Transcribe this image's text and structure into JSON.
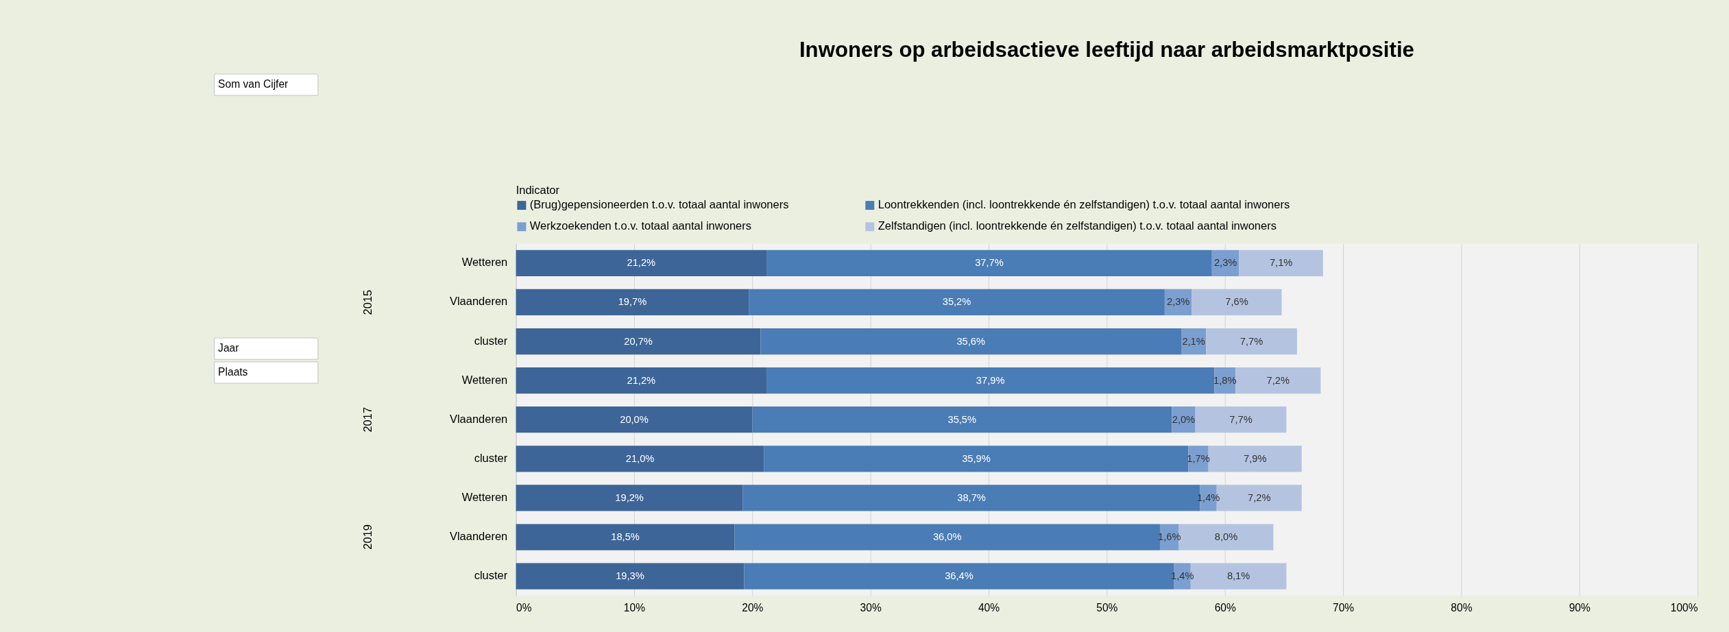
{
  "chart_data": {
    "type": "bar",
    "orientation": "horizontal",
    "stacked": true,
    "title": "Inwoners op arbeidsactieve leeftijd naar arbeidsmarktpositie",
    "legend_title": "Indicator",
    "legend": "top",
    "categories": [
      "Wetteren",
      "Vlaanderen",
      "cluster",
      "Wetteren",
      "Vlaanderen",
      "cluster",
      "Wetteren",
      "Vlaanderen",
      "cluster"
    ],
    "series": [
      {
        "name": "(Brug)gepensioneerden t.o.v. totaal aantal inwoners",
        "color": "#3d6597",
        "values": [
          21.2,
          19.7,
          20.7,
          21.2,
          20.0,
          21.0,
          19.2,
          18.5,
          19.3
        ],
        "value_labels": [
          "21,2%",
          "19,7%",
          "20,7%",
          "21,2%",
          "20,0%",
          "21,0%",
          "19,2%",
          "18,5%",
          "19,3%"
        ]
      },
      {
        "name": "Loontrekkenden (incl. loontrekkende én zelfstandigen) t.o.v. totaal aantal inwoners",
        "color": "#4a7cb6",
        "values": [
          37.7,
          35.2,
          35.6,
          37.9,
          35.5,
          35.9,
          38.7,
          36.0,
          36.4
        ],
        "value_labels": [
          "37,7%",
          "35,2%",
          "35,6%",
          "37,9%",
          "35,5%",
          "35,9%",
          "38,7%",
          "36,0%",
          "36,4%"
        ]
      },
      {
        "name": "Werkzoekenden t.o.v. totaal aantal inwoners",
        "color": "#7b9fd0",
        "values": [
          2.3,
          2.3,
          2.1,
          1.8,
          2.0,
          1.7,
          1.4,
          1.6,
          1.4
        ],
        "value_labels": [
          "2,3%",
          "2,3%",
          "2,1%",
          "1,8%",
          "2,0%",
          "1,7%",
          "1,4%",
          "1,6%",
          "1,4%"
        ]
      },
      {
        "name": "Zelfstandigen (incl. loontrekkende én zelfstandigen) t.o.v. totaal aantal inwoners",
        "color": "#b4c4e0",
        "values": [
          7.1,
          7.6,
          7.7,
          7.2,
          7.7,
          7.9,
          7.2,
          8.0,
          8.1
        ],
        "value_labels": [
          "7,1%",
          "7,6%",
          "7,7%",
          "7,2%",
          "7,7%",
          "7,9%",
          "7,2%",
          "8,0%",
          "8,1%"
        ]
      }
    ],
    "xlim": [
      0,
      100
    ],
    "xticks": [
      {
        "value": 0,
        "label": "0%"
      },
      {
        "value": 10,
        "label": "10%"
      },
      {
        "value": 20,
        "label": "20%"
      },
      {
        "value": 30,
        "label": "30%"
      },
      {
        "value": 40,
        "label": "40%"
      },
      {
        "value": 50,
        "label": "50%"
      },
      {
        "value": 60,
        "label": "60%"
      },
      {
        "value": 70,
        "label": "70%"
      },
      {
        "value": 80,
        "label": "80%"
      },
      {
        "value": 90,
        "label": "90%"
      },
      {
        "value": 100,
        "label": "100%"
      }
    ],
    "grid": "x",
    "annotations": [
      "Som van Cijfer",
      "Jaar",
      "Plaats",
      "2015",
      "2017",
      "2019"
    ]
  }
}
